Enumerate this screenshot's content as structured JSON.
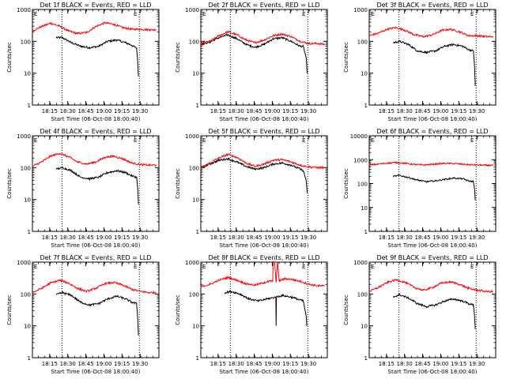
{
  "figure": {
    "x_axis_title": "Start Time (06-Oct-08 18:00:40)",
    "y_axis_title": "Counts/sec",
    "x_tick_labels": [
      "18:15",
      "18:30",
      "18:45",
      "19:00",
      "19:15",
      "19:30"
    ],
    "y_tick_labels": [
      "1",
      "10",
      "100",
      "1000",
      "10000"
    ],
    "corner_left": "E",
    "corner_right": "E",
    "colors": {
      "events": "#000000",
      "lld": "#ff0000",
      "axes": "#000000"
    }
  },
  "chart_data": [
    {
      "type": "line",
      "title": "Det 1f BLACK = Events, RED = LLD",
      "ylim": [
        1,
        1000
      ],
      "log_y": true,
      "xlim": [
        0,
        42
      ],
      "vlines": [
        9.8,
        35.5
      ],
      "series": [
        {
          "color": "#000000",
          "x": [
            8,
            10,
            13,
            16,
            19,
            22,
            25,
            28,
            31,
            33,
            34.6,
            35,
            35.2
          ],
          "values": [
            130,
            130,
            90,
            70,
            63,
            70,
            100,
            110,
            90,
            75,
            60,
            20,
            8
          ]
        },
        {
          "color": "#ff0000",
          "x": [
            0,
            3,
            6,
            9,
            12,
            15,
            18,
            21,
            24,
            27,
            30,
            33,
            36,
            39,
            41
          ],
          "values": [
            210,
            290,
            370,
            300,
            210,
            175,
            190,
            290,
            380,
            340,
            270,
            240,
            240,
            230,
            230
          ]
        }
      ]
    },
    {
      "type": "line",
      "title": "Det 2f BLACK = Events, RED = LLD",
      "ylim": [
        1,
        1000
      ],
      "log_y": true,
      "xlim": [
        0,
        42
      ],
      "vlines": [
        9.8,
        35.5
      ],
      "series": [
        {
          "color": "#000000",
          "x": [
            0,
            3,
            6,
            9,
            12,
            15,
            18,
            21,
            24,
            27,
            30,
            33,
            34,
            35,
            35.3
          ],
          "values": [
            80,
            95,
            130,
            160,
            120,
            80,
            65,
            80,
            120,
            130,
            100,
            70,
            70,
            30,
            10
          ]
        },
        {
          "color": "#ff0000",
          "x": [
            0,
            3,
            6,
            9,
            12,
            15,
            18,
            21,
            24,
            27,
            30,
            33,
            36,
            39,
            41
          ],
          "values": [
            85,
            100,
            150,
            200,
            160,
            110,
            90,
            110,
            150,
            170,
            140,
            100,
            85,
            85,
            80
          ]
        }
      ]
    },
    {
      "type": "line",
      "title": "Det 3f BLACK = Events, RED = LLD",
      "ylim": [
        1,
        1000
      ],
      "log_y": true,
      "xlim": [
        0,
        42
      ],
      "vlines": [
        9.8,
        35.5
      ],
      "series": [
        {
          "color": "#000000",
          "x": [
            8,
            10,
            13,
            16,
            19,
            22,
            25,
            28,
            31,
            33,
            34.6,
            35,
            35.2
          ],
          "values": [
            90,
            100,
            80,
            50,
            45,
            50,
            70,
            80,
            70,
            55,
            50,
            15,
            4
          ]
        },
        {
          "color": "#ff0000",
          "x": [
            0,
            3,
            6,
            9,
            12,
            15,
            18,
            21,
            24,
            27,
            30,
            33,
            36,
            39,
            41
          ],
          "values": [
            150,
            180,
            240,
            270,
            220,
            160,
            140,
            160,
            220,
            240,
            200,
            150,
            150,
            140,
            140
          ]
        }
      ]
    },
    {
      "type": "line",
      "title": "Det 4f BLACK = Events, RED = LLD",
      "ylim": [
        1,
        1000
      ],
      "log_y": true,
      "xlim": [
        0,
        42
      ],
      "vlines": [
        9.8,
        35.5
      ],
      "series": [
        {
          "color": "#000000",
          "x": [
            8,
            10,
            13,
            16,
            19,
            22,
            25,
            28,
            31,
            33,
            34.6,
            35,
            35.2
          ],
          "values": [
            90,
            100,
            80,
            50,
            45,
            50,
            70,
            80,
            70,
            55,
            50,
            20,
            7
          ]
        },
        {
          "color": "#ff0000",
          "x": [
            0,
            3,
            6,
            9,
            12,
            15,
            18,
            21,
            24,
            27,
            30,
            33,
            36,
            39,
            41
          ],
          "values": [
            110,
            150,
            230,
            280,
            220,
            150,
            130,
            150,
            210,
            230,
            190,
            140,
            125,
            120,
            120
          ]
        }
      ]
    },
    {
      "type": "line",
      "title": "Det 5f BLACK = Events, RED = LLD",
      "ylim": [
        1,
        1000
      ],
      "log_y": true,
      "xlim": [
        0,
        42
      ],
      "vlines": [
        9.8,
        35.5
      ],
      "series": [
        {
          "color": "#000000",
          "x": [
            0,
            3,
            6,
            9,
            12,
            15,
            18,
            21,
            24,
            27,
            30,
            33,
            34,
            35,
            35.3
          ],
          "values": [
            100,
            130,
            170,
            190,
            150,
            110,
            90,
            100,
            130,
            140,
            120,
            90,
            80,
            40,
            16
          ]
        },
        {
          "color": "#ff0000",
          "x": [
            0,
            3,
            6,
            9,
            12,
            15,
            18,
            21,
            24,
            27,
            30,
            33,
            36,
            39,
            41
          ],
          "values": [
            100,
            140,
            200,
            260,
            210,
            140,
            110,
            130,
            170,
            180,
            150,
            120,
            105,
            100,
            100
          ]
        }
      ]
    },
    {
      "type": "line",
      "title": "Det 6f BLACK = Events, RED = LLD",
      "ylim": [
        1,
        10000
      ],
      "log_y": true,
      "xlim": [
        0,
        42
      ],
      "vlines": [
        9.8,
        35.5
      ],
      "series": [
        {
          "color": "#000000",
          "x": [
            8,
            10,
            13,
            16,
            19,
            22,
            25,
            28,
            31,
            33,
            34.6,
            35,
            35.2
          ],
          "values": [
            200,
            220,
            180,
            140,
            120,
            130,
            150,
            170,
            160,
            130,
            120,
            60,
            20
          ]
        },
        {
          "color": "#ff0000",
          "x": [
            0,
            3,
            6,
            9,
            12,
            15,
            18,
            21,
            24,
            27,
            30,
            33,
            36,
            39,
            41
          ],
          "values": [
            600,
            650,
            720,
            760,
            700,
            630,
            600,
            640,
            690,
            700,
            660,
            620,
            600,
            580,
            580
          ]
        }
      ]
    },
    {
      "type": "line",
      "title": "Det 7f BLACK = Events, RED = LLD",
      "ylim": [
        1,
        1000
      ],
      "log_y": true,
      "xlim": [
        0,
        42
      ],
      "vlines": [
        9.8,
        35.5
      ],
      "series": [
        {
          "color": "#000000",
          "x": [
            8,
            10,
            13,
            16,
            19,
            22,
            25,
            28,
            31,
            33,
            34.6,
            35,
            35.2
          ],
          "values": [
            95,
            110,
            90,
            55,
            45,
            50,
            70,
            85,
            70,
            55,
            50,
            15,
            5
          ]
        },
        {
          "color": "#ff0000",
          "x": [
            0,
            3,
            6,
            9,
            12,
            15,
            18,
            21,
            24,
            27,
            30,
            33,
            36,
            39,
            41
          ],
          "values": [
            110,
            150,
            220,
            270,
            220,
            150,
            120,
            150,
            210,
            230,
            190,
            140,
            120,
            110,
            110
          ]
        }
      ]
    },
    {
      "type": "line",
      "title": "Det 8f BLACK = Events, RED = LLD",
      "ylim": [
        1,
        1000
      ],
      "log_y": true,
      "xlim": [
        0,
        42
      ],
      "vlines": [
        9.8,
        35.5
      ],
      "series": [
        {
          "color": "#000000",
          "x": [
            8,
            10,
            13,
            16,
            19,
            22,
            24.9,
            25,
            25.1,
            27,
            30,
            32,
            34,
            35,
            35.2
          ],
          "values": [
            110,
            120,
            100,
            70,
            60,
            70,
            80,
            10,
            80,
            90,
            80,
            70,
            60,
            20,
            10
          ]
        },
        {
          "color": "#ff0000",
          "x": [
            0,
            3,
            6,
            9,
            12,
            15,
            18,
            21,
            23.9,
            24,
            24.5,
            25,
            25.5,
            26,
            28,
            30,
            33,
            36,
            39,
            41
          ],
          "values": [
            170,
            200,
            270,
            330,
            270,
            210,
            190,
            230,
            260,
            1000,
            1000,
            230,
            1000,
            260,
            300,
            290,
            250,
            200,
            180,
            180
          ]
        }
      ]
    },
    {
      "type": "line",
      "title": "Det 9f BLACK = Events, RED = LLD",
      "ylim": [
        1,
        1000
      ],
      "log_y": true,
      "xlim": [
        0,
        42
      ],
      "vlines": [
        9.8,
        35.5
      ],
      "series": [
        {
          "color": "#000000",
          "x": [
            8,
            10,
            13,
            16,
            19,
            22,
            25,
            28,
            31,
            33,
            34.6,
            35,
            35.2
          ],
          "values": [
            80,
            95,
            75,
            50,
            40,
            45,
            60,
            70,
            60,
            50,
            45,
            20,
            8
          ]
        },
        {
          "color": "#ff0000",
          "x": [
            0,
            3,
            6,
            9,
            12,
            15,
            18,
            21,
            24,
            27,
            30,
            33,
            36,
            39,
            41
          ],
          "values": [
            120,
            160,
            230,
            280,
            230,
            160,
            130,
            160,
            220,
            240,
            200,
            150,
            130,
            120,
            120
          ]
        }
      ]
    }
  ]
}
